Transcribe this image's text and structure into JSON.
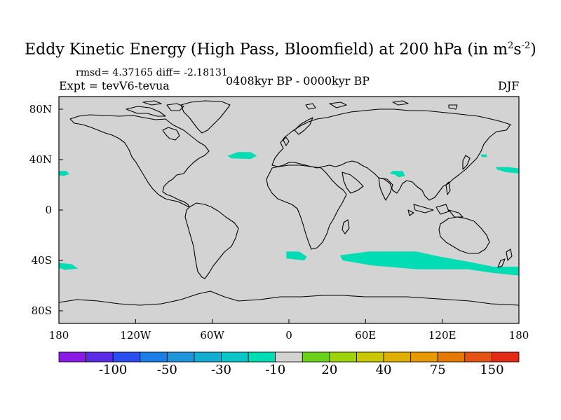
{
  "title": {
    "main": "Eddy Kinetic Energy (High Pass, Bloomfield) at 200 hPa (in m",
    "sup1": "2",
    "mid": "s",
    "sup2": "-2",
    "close": ")"
  },
  "stats": "rmsd= 4.37165 diff= -2.18131",
  "experiment": "Expt = tevV6-tevua",
  "period": "0408kyr BP - 0000kyr BP",
  "season": "DJF",
  "map": {
    "projection": "cylindrical-equidistant",
    "lon_range": [
      -180,
      180
    ],
    "lat_range": [
      -90,
      90
    ],
    "background_color": "#d3d3d3",
    "coastline_color": "#000000",
    "y_ticks": [
      {
        "lat": 80,
        "label": "80N"
      },
      {
        "lat": 40,
        "label": "40N"
      },
      {
        "lat": 0,
        "label": "0"
      },
      {
        "lat": -40,
        "label": "40S"
      },
      {
        "lat": -80,
        "label": "80S"
      }
    ],
    "x_ticks": [
      {
        "lon": -180,
        "label": "180"
      },
      {
        "lon": -120,
        "label": "120W"
      },
      {
        "lon": -60,
        "label": "60W"
      },
      {
        "lon": 0,
        "label": "0"
      },
      {
        "lon": 60,
        "label": "60E"
      },
      {
        "lon": 120,
        "label": "120E"
      },
      {
        "lon": 180,
        "label": "180"
      }
    ],
    "anomaly_regions": [
      {
        "id": "north-atlantic",
        "color": "#00dcb4",
        "points": [
          [
            -48,
            43
          ],
          [
            -40,
            46
          ],
          [
            -30,
            46
          ],
          [
            -25,
            43
          ],
          [
            -30,
            40.5
          ],
          [
            -45,
            41
          ]
        ]
      },
      {
        "id": "east-pacific",
        "color": "#00dcb4",
        "points": [
          [
            -180,
            31
          ],
          [
            -174,
            31
          ],
          [
            -172,
            28.5
          ],
          [
            -176,
            27
          ],
          [
            -180,
            27.5
          ]
        ]
      },
      {
        "id": "north-pacific-east",
        "color": "#00dcb4",
        "points": [
          [
            162,
            34
          ],
          [
            172,
            34
          ],
          [
            180,
            33
          ],
          [
            180,
            29
          ],
          [
            170,
            30
          ],
          [
            163,
            32
          ]
        ]
      },
      {
        "id": "northwest-pacific",
        "color": "#00dcb4",
        "points": [
          [
            150,
            44
          ],
          [
            155,
            44
          ],
          [
            155,
            42
          ],
          [
            151,
            42
          ]
        ]
      },
      {
        "id": "china-band",
        "color": "#00dcb4",
        "points": [
          [
            81,
            31
          ],
          [
            89,
            31
          ],
          [
            91,
            27
          ],
          [
            86,
            26
          ],
          [
            83,
            28
          ],
          [
            79,
            29
          ]
        ]
      },
      {
        "id": "south-atlantic",
        "color": "#00dcb4",
        "points": [
          [
            -2,
            -33
          ],
          [
            8,
            -33
          ],
          [
            14,
            -37
          ],
          [
            12,
            -40
          ],
          [
            -2,
            -38.5
          ]
        ]
      },
      {
        "id": "southern-indian-ocean",
        "color": "#00dcb4",
        "points": [
          [
            40,
            -36
          ],
          [
            62,
            -33
          ],
          [
            100,
            -33
          ],
          [
            118,
            -37
          ],
          [
            140,
            -41
          ],
          [
            160,
            -45
          ],
          [
            180,
            -45
          ],
          [
            180,
            -52
          ],
          [
            160,
            -50
          ],
          [
            140,
            -47
          ],
          [
            100,
            -47
          ],
          [
            65,
            -44
          ],
          [
            42,
            -40
          ]
        ]
      },
      {
        "id": "southeast-pacific",
        "color": "#00dcb4",
        "points": [
          [
            -180,
            -42
          ],
          [
            -170,
            -43
          ],
          [
            -165,
            -46.5
          ],
          [
            -175,
            -47.5
          ],
          [
            -180,
            -46
          ]
        ]
      }
    ]
  },
  "colorbar": {
    "colors": [
      "#8a1ae6",
      "#5a2ae6",
      "#2a4ef0",
      "#1a7ee6",
      "#1e96dc",
      "#12aed2",
      "#0ac6c8",
      "#00dcb4",
      "#d3d3d3",
      "#6ad21a",
      "#9ed20a",
      "#c8c800",
      "#e0b000",
      "#e69a00",
      "#e67800",
      "#e45214",
      "#e42a14"
    ],
    "labels": [
      {
        "label": "-100",
        "boundary": 2
      },
      {
        "label": "-50",
        "boundary": 4
      },
      {
        "label": "-30",
        "boundary": 6
      },
      {
        "label": "-10",
        "boundary": 8
      },
      {
        "label": "20",
        "boundary": 10
      },
      {
        "label": "40",
        "boundary": 12
      },
      {
        "label": "75",
        "boundary": 14
      },
      {
        "label": "150",
        "boundary": 16
      }
    ]
  }
}
